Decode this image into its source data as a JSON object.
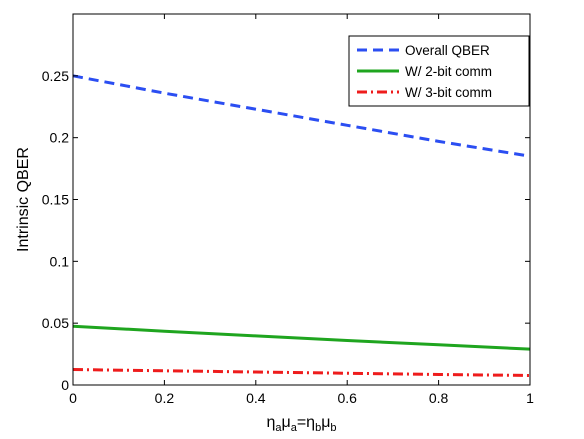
{
  "chart_data": {
    "type": "line",
    "xlabel": {
      "parts": [
        {
          "t": "η",
          "s": false
        },
        {
          "t": "a",
          "s": true
        },
        {
          "t": "μ",
          "s": false
        },
        {
          "t": "a",
          "s": true
        },
        {
          "t": "=η",
          "s": false
        },
        {
          "t": "b",
          "s": true
        },
        {
          "t": "μ",
          "s": false
        },
        {
          "t": "b",
          "s": true
        }
      ]
    },
    "ylabel": "Intrinsic QBER",
    "xlim": [
      0,
      1
    ],
    "ylim": [
      0,
      0.3
    ],
    "xticks": [
      0,
      0.2,
      0.4,
      0.6,
      0.8,
      1
    ],
    "xtick_labels": [
      "0",
      "0.2",
      "0.4",
      "0.6",
      "0.8",
      "1"
    ],
    "yticks": [
      0,
      0.05,
      0.1,
      0.15,
      0.2,
      0.25
    ],
    "ytick_labels": [
      "0",
      "0.05",
      "0.1",
      "0.15",
      "0.2",
      "0.25"
    ],
    "grid": false,
    "legend_position": "top-right",
    "series": [
      {
        "name": "Overall QBER",
        "color": "#2b4ef2",
        "style": "dashed",
        "x": [
          0,
          0.2,
          0.4,
          0.6,
          0.8,
          1
        ],
        "y": [
          0.25,
          0.236,
          0.223,
          0.21,
          0.197,
          0.185
        ]
      },
      {
        "name": "W/ 2-bit comm",
        "color": "#1fa51f",
        "style": "solid",
        "x": [
          0,
          0.2,
          0.4,
          0.6,
          0.8,
          1
        ],
        "y": [
          0.0475,
          0.0435,
          0.0397,
          0.036,
          0.0325,
          0.029
        ]
      },
      {
        "name": "W/ 3-bit comm",
        "color": "#ee1c1c",
        "style": "dashdot",
        "x": [
          0,
          0.2,
          0.4,
          0.6,
          0.8,
          1
        ],
        "y": [
          0.0125,
          0.0115,
          0.0105,
          0.0095,
          0.0085,
          0.0077
        ]
      }
    ]
  }
}
